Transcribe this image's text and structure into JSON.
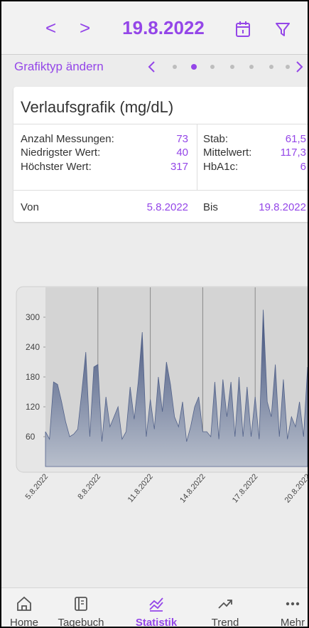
{
  "header": {
    "date": "19.8.2022"
  },
  "chart_type_row": {
    "label": "Grafiktyp ändern"
  },
  "card": {
    "title": "Verlaufsgrafik (mg/dL)",
    "stats_left": [
      {
        "label": "Anzahl Messungen:",
        "value": 73
      },
      {
        "label": "Niedrigster Wert:",
        "value": 40
      },
      {
        "label": "Höchster Wert:",
        "value": 317
      }
    ],
    "stats_right": [
      {
        "label": "Stab:",
        "value": "61,5"
      },
      {
        "label": "Mittelwert:",
        "value": "117,3"
      },
      {
        "label": "HbA1c:",
        "value": 6
      }
    ],
    "from_label": "Von",
    "from": "5.8.2022",
    "to_label": "Bis",
    "to": "19.8.2022"
  },
  "chart_data": {
    "type": "area",
    "x_labels": [
      "5.8.2022",
      "8.8.2022",
      "11.8.2022",
      "14.8.2022",
      "17.8.2022",
      "20.8.2022"
    ],
    "values": [
      70,
      55,
      170,
      165,
      130,
      90,
      60,
      65,
      75,
      150,
      230,
      60,
      200,
      205,
      50,
      140,
      80,
      100,
      120,
      55,
      70,
      160,
      95,
      170,
      270,
      60,
      135,
      75,
      180,
      110,
      210,
      165,
      100,
      80,
      130,
      50,
      80,
      120,
      140,
      70,
      70,
      60,
      170,
      55,
      175,
      100,
      170,
      60,
      180,
      60,
      160,
      60,
      140,
      55,
      315,
      130,
      100,
      205,
      60,
      175,
      55,
      100,
      80,
      130,
      60,
      200
    ],
    "ylim": [
      0,
      360
    ],
    "yticks": [
      60,
      120,
      180,
      240,
      300
    ],
    "color": "#52628a",
    "grid": true
  },
  "nav": [
    {
      "label": "Home"
    },
    {
      "label": "Tagebuch"
    },
    {
      "label": "Statistik",
      "active": true
    },
    {
      "label": "Trend"
    },
    {
      "label": "Mehr"
    }
  ]
}
